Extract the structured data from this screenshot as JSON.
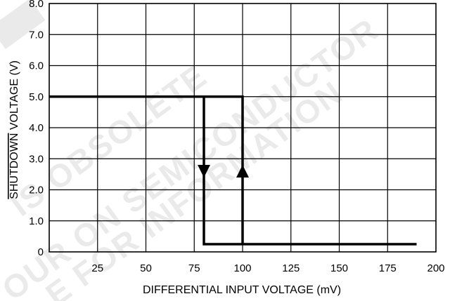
{
  "chart_data": {
    "type": "line",
    "title": "",
    "xlabel": "DIFFERENTIAL INPUT VOLTAGE (mV)",
    "ylabel_overbar": "SHUTDOWN",
    "ylabel_rest": " VOLTAGE (V)",
    "xlim": [
      0,
      200
    ],
    "ylim": [
      0,
      8
    ],
    "x_ticks": [
      25,
      50,
      75,
      100,
      125,
      150,
      175,
      200
    ],
    "x_tick_labels": [
      "25",
      "50",
      "75",
      "100",
      "125",
      "150",
      "175",
      "200"
    ],
    "y_ticks": [
      0,
      1,
      2,
      3,
      4,
      5,
      6,
      7,
      8
    ],
    "y_tick_labels": [
      "0",
      "1.0",
      "2.0",
      "3.0",
      "4.0",
      "5.0",
      "6.0",
      "7.0",
      "8.0"
    ],
    "grid": true,
    "series": [
      {
        "values": [
          {
            "x": 0,
            "y": 5.0
          },
          {
            "x": 100,
            "y": 5.0
          },
          {
            "x": 100,
            "y": 0.25
          }
        ]
      },
      {
        "values": [
          {
            "x": 80,
            "y": 5.0
          },
          {
            "x": 80,
            "y": 0.25
          },
          {
            "x": 190,
            "y": 0.25
          }
        ]
      }
    ],
    "arrows": [
      {
        "x": 80,
        "y": 2.6,
        "direction": "down"
      },
      {
        "x": 100,
        "y": 2.6,
        "direction": "up"
      }
    ]
  },
  "watermark": {
    "lines": [
      "IS OBSOLETE",
      "OUR ON SEMICONDUCTOR",
      "E FOR INFORMATION"
    ],
    "partial_top": "T",
    "color": "#d9d9d9"
  }
}
